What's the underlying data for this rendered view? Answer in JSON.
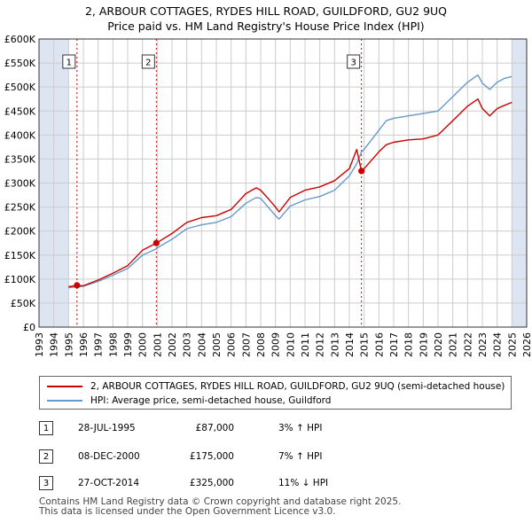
{
  "title": {
    "line1": "2, ARBOUR COTTAGES, RYDES HILL ROAD, GUILDFORD, GU2 9UQ",
    "line2": "Price paid vs. HM Land Registry's House Price Index (HPI)"
  },
  "colors": {
    "property": "#cc0000",
    "hpi": "#6699cc",
    "shade": "#dde5f2",
    "grid": "#cccccc",
    "marker_line": "#cc0000"
  },
  "legend": {
    "property_label": "2, ARBOUR COTTAGES, RYDES HILL ROAD, GUILDFORD, GU2 9UQ (semi-detached house)",
    "hpi_label": "HPI: Average price, semi-detached house, Guildford"
  },
  "sales": [
    {
      "num": "1",
      "date": "28-JUL-1995",
      "price": "£87,000",
      "diff": "3% ↑ HPI"
    },
    {
      "num": "2",
      "date": "08-DEC-2000",
      "price": "£175,000",
      "diff": "7% ↑ HPI"
    },
    {
      "num": "3",
      "date": "27-OCT-2014",
      "price": "£325,000",
      "diff": "11% ↓ HPI"
    }
  ],
  "footer": {
    "line1": "Contains HM Land Registry data © Crown copyright and database right 2025.",
    "line2": "This data is licensed under the Open Government Licence v3.0."
  },
  "chart_data": {
    "type": "line",
    "title": "2, ARBOUR COTTAGES, RYDES HILL ROAD, GUILDFORD, GU2 9UQ — Price paid vs. HM Land Registry's House Price Index (HPI)",
    "xlabel": "",
    "ylabel": "",
    "xlim": [
      1993,
      2026
    ],
    "ylim": [
      0,
      600000
    ],
    "x_ticks": [
      1993,
      1994,
      1995,
      1996,
      1997,
      1998,
      1999,
      2000,
      2001,
      2002,
      2003,
      2004,
      2005,
      2006,
      2007,
      2008,
      2009,
      2010,
      2011,
      2012,
      2013,
      2014,
      2015,
      2016,
      2017,
      2018,
      2019,
      2020,
      2021,
      2022,
      2023,
      2024,
      2025,
      2026
    ],
    "y_ticks": [
      0,
      50000,
      100000,
      150000,
      200000,
      250000,
      300000,
      350000,
      400000,
      450000,
      500000,
      550000,
      600000
    ],
    "y_tick_labels": [
      "£0",
      "£50K",
      "£100K",
      "£150K",
      "£200K",
      "£250K",
      "£300K",
      "£350K",
      "£400K",
      "£450K",
      "£500K",
      "£550K",
      "£600K"
    ],
    "shaded_ranges": [
      [
        1993,
        1995.0
      ],
      [
        2025.0,
        2026
      ]
    ],
    "series": [
      {
        "name": "2, ARBOUR COTTAGES, RYDES HILL ROAD, GUILDFORD, GU2 9UQ (semi-detached house)",
        "x": [
          1995.0,
          1995.57,
          1996.0,
          1997.0,
          1998.0,
          1999.0,
          2000.0,
          2000.94,
          2001.0,
          2002.0,
          2003.0,
          2004.0,
          2005.0,
          2006.0,
          2007.0,
          2007.7,
          2008.0,
          2008.5,
          2009.0,
          2009.25,
          2010.0,
          2011.0,
          2012.0,
          2013.0,
          2014.0,
          2014.5,
          2014.82,
          2015.0,
          2016.0,
          2016.5,
          2017.0,
          2018.0,
          2019.0,
          2020.0,
          2021.0,
          2022.0,
          2022.7,
          2023.0,
          2023.5,
          2024.0,
          2024.5,
          2025.0
        ],
        "values": [
          84000,
          87000,
          86000,
          98000,
          112000,
          128000,
          160000,
          175000,
          176000,
          195000,
          218000,
          228000,
          232000,
          245000,
          278000,
          290000,
          285000,
          268000,
          250000,
          240000,
          270000,
          285000,
          292000,
          305000,
          330000,
          370000,
          325000,
          330000,
          365000,
          380000,
          385000,
          390000,
          392000,
          400000,
          430000,
          460000,
          475000,
          455000,
          440000,
          455000,
          462000,
          468000
        ]
      },
      {
        "name": "HPI: Average price, semi-detached house, Guildford",
        "x": [
          1995.0,
          1995.57,
          1996.0,
          1997.0,
          1998.0,
          1999.0,
          2000.0,
          2000.94,
          2001.0,
          2002.0,
          2003.0,
          2004.0,
          2005.0,
          2006.0,
          2007.0,
          2007.7,
          2008.0,
          2008.5,
          2009.0,
          2009.25,
          2010.0,
          2011.0,
          2012.0,
          2013.0,
          2014.0,
          2014.5,
          2014.82,
          2015.0,
          2016.0,
          2016.5,
          2017.0,
          2018.0,
          2019.0,
          2020.0,
          2021.0,
          2022.0,
          2022.7,
          2023.0,
          2023.5,
          2024.0,
          2024.5,
          2025.0
        ],
        "values": [
          82000,
          84000,
          85000,
          95000,
          108000,
          122000,
          150000,
          163000,
          165000,
          183000,
          205000,
          213000,
          218000,
          230000,
          258000,
          270000,
          268000,
          250000,
          232000,
          225000,
          252000,
          265000,
          272000,
          285000,
          315000,
          340000,
          365000,
          370000,
          410000,
          430000,
          435000,
          440000,
          445000,
          450000,
          480000,
          510000,
          525000,
          508000,
          495000,
          510000,
          518000,
          522000
        ]
      }
    ],
    "sale_markers": [
      {
        "label": "1",
        "x": 1995.57,
        "value": 87000
      },
      {
        "label": "2",
        "x": 2000.94,
        "value": 175000
      },
      {
        "label": "3",
        "x": 2014.82,
        "value": 325000
      }
    ]
  }
}
